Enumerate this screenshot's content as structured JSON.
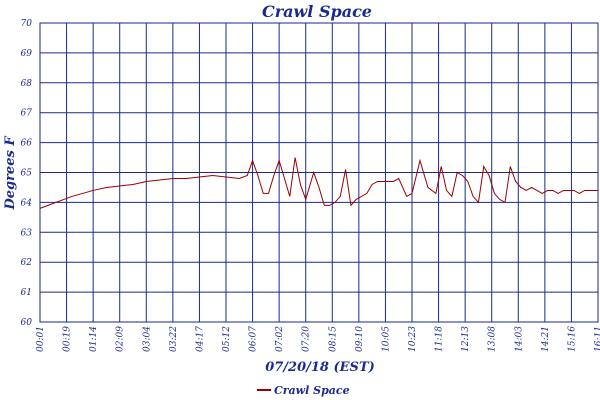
{
  "colors": {
    "frame": "#1a2a8f",
    "grid": "#1a2a8f",
    "series": "#990000",
    "text": "#1a2a8f",
    "background": "#ffffff"
  },
  "chart_data": {
    "type": "line",
    "title": "Crawl Space",
    "xlabel": "07/20/18 (EST)",
    "ylabel": "Degrees F",
    "ylim": [
      60,
      70
    ],
    "yticks": [
      "60",
      "61",
      "62",
      "63",
      "64",
      "65",
      "66",
      "67",
      "68",
      "69",
      "70"
    ],
    "xticks": [
      "00:01",
      "00:19",
      "01:14",
      "02:09",
      "03:04",
      "03:22",
      "04:17",
      "05:12",
      "06:07",
      "07:02",
      "07:20",
      "08:15",
      "09:10",
      "10:05",
      "10:23",
      "11:18",
      "12:13",
      "13:08",
      "14:03",
      "14:21",
      "15:16",
      "16:11"
    ],
    "grid": true,
    "legend_position": "bottom-center",
    "series": [
      {
        "name": "Crawl Space",
        "x": [
          0,
          0.3,
          0.6,
          0.9,
          1.2,
          1.6,
          2,
          2.5,
          3,
          3.5,
          4,
          4.5,
          5,
          5.5,
          6,
          6.5,
          7,
          7.5,
          7.8,
          8,
          8.2,
          8.4,
          8.6,
          8.8,
          9,
          9.2,
          9.4,
          9.6,
          9.8,
          10,
          10.3,
          10.5,
          10.7,
          10.9,
          11.1,
          11.3,
          11.5,
          11.7,
          11.9,
          12.1,
          12.3,
          12.5,
          12.7,
          12.9,
          13.1,
          13.3,
          13.5,
          13.8,
          14,
          14.3,
          14.6,
          14.9,
          15.1,
          15.3,
          15.5,
          15.7,
          15.9,
          16.1,
          16.3,
          16.5,
          16.7,
          16.9,
          17.1,
          17.3,
          17.5,
          17.7,
          17.9,
          18.1,
          18.3,
          18.5,
          18.7,
          18.9,
          19.1,
          19.3,
          19.5,
          19.7,
          19.9,
          20.1,
          20.3,
          20.5,
          20.7,
          20.9,
          21
        ],
        "values": [
          63.8,
          63.9,
          64.0,
          64.1,
          64.2,
          64.3,
          64.4,
          64.5,
          64.55,
          64.6,
          64.7,
          64.75,
          64.8,
          64.8,
          64.85,
          64.9,
          64.85,
          64.8,
          64.9,
          65.4,
          64.9,
          64.3,
          64.3,
          64.9,
          65.4,
          64.8,
          64.2,
          65.5,
          64.6,
          64.1,
          65.0,
          64.5,
          63.9,
          63.9,
          64.0,
          64.2,
          65.1,
          63.9,
          64.1,
          64.2,
          64.3,
          64.6,
          64.7,
          64.7,
          64.7,
          64.7,
          64.8,
          64.2,
          64.3,
          65.4,
          64.5,
          64.3,
          65.2,
          64.4,
          64.2,
          65.0,
          64.9,
          64.7,
          64.2,
          64.0,
          65.2,
          64.9,
          64.3,
          64.1,
          64.0,
          65.2,
          64.7,
          64.5,
          64.4,
          64.5,
          64.4,
          64.3,
          64.4,
          64.4,
          64.3,
          64.4,
          64.4,
          64.4,
          64.3,
          64.4,
          64.4,
          64.4,
          64.4
        ]
      }
    ]
  }
}
